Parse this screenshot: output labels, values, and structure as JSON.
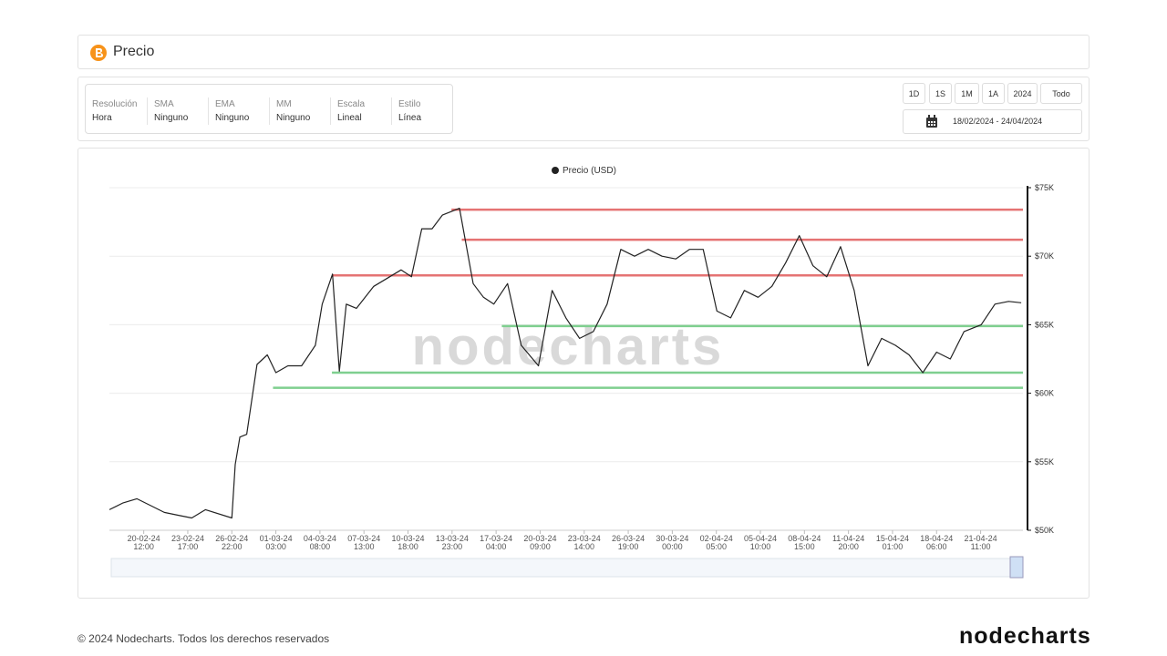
{
  "header": {
    "title": "Precio"
  },
  "settings": [
    {
      "label": "Resolución",
      "value": "Hora"
    },
    {
      "label": "SMA",
      "value": "Ninguno"
    },
    {
      "label": "EMA",
      "value": "Ninguno"
    },
    {
      "label": "MM",
      "value": "Ninguno"
    },
    {
      "label": "Escala",
      "value": "Lineal"
    },
    {
      "label": "Estilo",
      "value": "Línea"
    }
  ],
  "range_buttons": [
    "1D",
    "1S",
    "1M",
    "1A",
    "2024",
    "Todo"
  ],
  "date_range": "18/02/2024 - 24/04/2024",
  "watermark": "nodecharts",
  "chart_data": {
    "type": "line",
    "series": [
      {
        "name": "Precio (USD)",
        "color": "#222222",
        "values": [
          51500,
          52000,
          52300,
          51800,
          51300,
          51100,
          50900,
          51500,
          50900,
          54800,
          56800,
          57000,
          62100,
          62800,
          61500,
          62000,
          62000,
          63500,
          66500,
          68700,
          61600,
          66500,
          66200,
          67800,
          68400,
          69000,
          68500,
          72000,
          72000,
          73000,
          73500,
          68000,
          67000,
          66500,
          68000,
          63500,
          62000,
          67500,
          65500,
          64000,
          64500,
          66500,
          70500,
          70000,
          70500,
          70000,
          69800,
          70500,
          70500,
          66000,
          65500,
          67500,
          67000,
          67800,
          69500,
          71500,
          69300,
          68500,
          70700,
          67500,
          62000,
          64000,
          63500,
          62800,
          61500,
          63000,
          62500,
          64500,
          65000,
          66500,
          66700,
          66600
        ]
      }
    ],
    "x": [
      "18-02-24 00:00",
      "19-02-24 00:00",
      "20-02-24 00:00",
      "21-02-24 00:00",
      "22-02-24 00:00",
      "23-02-24 00:00",
      "24-02-24 00:00",
      "25-02-24 00:00",
      "26-02-24 22:00",
      "27-02-24 04:00",
      "27-02-24 12:00",
      "28-02-24 00:00",
      "28-02-24 18:00",
      "29-02-24 12:00",
      "01-03-24 03:00",
      "02-03-24 00:00",
      "03-03-24 00:00",
      "04-03-24 00:00",
      "04-03-24 12:00",
      "05-03-24 06:00",
      "05-03-24 18:00",
      "06-03-24 06:00",
      "07-03-24 00:00",
      "08-03-24 06:00",
      "09-03-24 06:00",
      "10-03-24 06:00",
      "11-03-24 00:00",
      "11-03-24 18:00",
      "12-03-24 12:00",
      "13-03-24 06:00",
      "14-03-24 12:00",
      "15-03-24 12:00",
      "16-03-24 06:00",
      "17-03-24 00:00",
      "18-03-24 00:00",
      "19-03-24 00:00",
      "20-03-24 06:00",
      "21-03-24 06:00",
      "22-03-24 06:00",
      "23-03-24 06:00",
      "24-03-24 06:00",
      "25-03-24 06:00",
      "26-03-24 06:00",
      "27-03-24 06:00",
      "28-03-24 06:00",
      "29-03-24 06:00",
      "30-03-24 06:00",
      "31-03-24 06:00",
      "01-04-24 06:00",
      "02-04-24 06:00",
      "03-04-24 06:00",
      "04-04-24 06:00",
      "05-04-24 06:00",
      "06-04-24 06:00",
      "07-04-24 06:00",
      "08-04-24 06:00",
      "09-04-24 06:00",
      "10-04-24 06:00",
      "11-04-24 06:00",
      "12-04-24 06:00",
      "13-04-24 06:00",
      "14-04-24 06:00",
      "15-04-24 06:00",
      "16-04-24 06:00",
      "17-04-24 06:00",
      "18-04-24 06:00",
      "19-04-24 06:00",
      "20-04-24 06:00",
      "21-04-24 12:00",
      "22-04-24 12:00",
      "23-04-24 12:00",
      "24-04-24 10:00"
    ],
    "xlim": [
      "18-02-24 00:00",
      "24-04-24 13:00"
    ],
    "xticks": [
      "20-02-24 12:00",
      "23-02-24 17:00",
      "26-02-24 22:00",
      "01-03-24 03:00",
      "04-03-24 08:00",
      "07-03-24 13:00",
      "10-03-24 18:00",
      "13-03-24 23:00",
      "17-03-24 04:00",
      "20-03-24 09:00",
      "23-03-24 14:00",
      "26-03-24 19:00",
      "30-03-24 00:00",
      "02-04-24 05:00",
      "05-04-24 10:00",
      "08-04-24 15:00",
      "11-04-24 20:00",
      "15-04-24 01:00",
      "18-04-24 06:00",
      "21-04-24 11:00"
    ],
    "ylim": [
      50000,
      75000
    ],
    "yticks": [
      {
        "value": 50000,
        "label": "$50K"
      },
      {
        "value": 55000,
        "label": "$55K"
      },
      {
        "value": 60000,
        "label": "$60K"
      },
      {
        "value": 65000,
        "label": "$65K"
      },
      {
        "value": 70000,
        "label": "$70K"
      },
      {
        "value": 75000,
        "label": "$75K"
      }
    ],
    "grid": true,
    "levels": [
      {
        "value": 73400,
        "color": "#e57373",
        "start": "13-03-24 22:00"
      },
      {
        "value": 71200,
        "color": "#e57373",
        "start": "14-03-24 16:00"
      },
      {
        "value": 68600,
        "color": "#e57373",
        "start": "05-03-24 05:00"
      },
      {
        "value": 64900,
        "color": "#7fcf8f",
        "start": "17-03-24 14:00"
      },
      {
        "value": 61500,
        "color": "#7fcf8f",
        "start": "05-03-24 05:00"
      },
      {
        "value": 60400,
        "color": "#7fcf8f",
        "start": "29-02-24 22:00"
      }
    ]
  },
  "footer": {
    "copyright": "© 2024 Nodecharts. Todos los derechos reservados",
    "logo": "nodecharts"
  }
}
